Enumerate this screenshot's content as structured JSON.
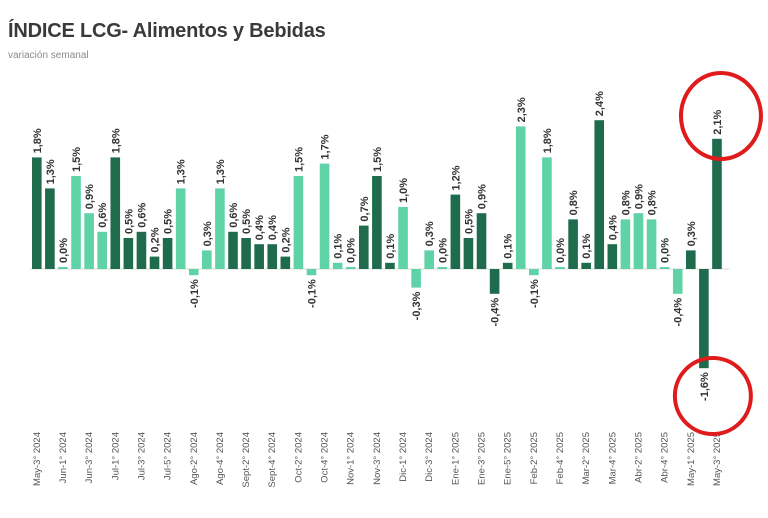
{
  "colors": {
    "dark": "#1f6b4e",
    "light": "#5fd3a7",
    "circle": "#e01b1b",
    "zero_line": "#d9d9d9"
  },
  "chart_data": {
    "type": "bar",
    "title": "ÍNDICE LCG- Alimentos y Bebidas",
    "subtitle": "variación semanal",
    "ylim": [
      -2.0,
      2.6
    ],
    "categories": [
      "May-3° 2024",
      "",
      "Jun-1° 2024",
      "",
      "Jun-3° 2024",
      "",
      "Jul-1° 2024",
      "",
      "Jul-3° 2024",
      "",
      "Jul-5° 2024",
      "",
      "Ago-2° 2024",
      "",
      "Ago-4° 2024",
      "",
      "Sept-2° 2024",
      "",
      "Sept-4° 2024",
      "",
      "Oct-2° 2024",
      "",
      "Oct-4° 2024",
      "",
      "Nov-1° 2024",
      "",
      "Nov-3° 2024",
      "",
      "Dic-1° 2024",
      "",
      "Dic-3° 2024",
      "",
      "Ene-1° 2025",
      "",
      "Ene-3° 2025",
      "",
      "Ene-5° 2025",
      "",
      "Feb-2° 2025",
      "",
      "Feb-4° 2025",
      "",
      "Mar-2° 2025",
      "",
      "Mar-4° 2025",
      "",
      "Abr-2° 2025",
      "",
      "Abr-4° 2025",
      "",
      "May-1° 2025",
      "",
      "May-3° 2025"
    ],
    "values": [
      1.8,
      1.3,
      0.0,
      1.5,
      0.9,
      0.6,
      1.8,
      0.5,
      0.6,
      0.2,
      0.5,
      1.3,
      -0.1,
      0.3,
      1.3,
      0.6,
      0.5,
      0.4,
      0.4,
      0.2,
      1.5,
      -0.1,
      1.7,
      0.1,
      0.0,
      0.7,
      1.5,
      0.1,
      1.0,
      -0.3,
      0.3,
      0.0,
      1.2,
      0.5,
      0.9,
      -0.4,
      0.1,
      2.3,
      -0.1,
      1.8,
      0.0,
      0.8,
      0.1,
      2.4,
      0.4,
      0.8,
      0.9,
      0.8,
      0.0,
      -0.4,
      0.3,
      -1.6,
      2.1
    ],
    "labels": [
      "1,8%",
      "1,3%",
      "0,0%",
      "1,5%",
      "0,9%",
      "0,6%",
      "1,8%",
      "0,5%",
      "0,6%",
      "0,2%",
      "0,5%",
      "1,3%",
      "-0,1%",
      "0,3%",
      "1,3%",
      "0,6%",
      "0,5%",
      "0,4%",
      "0,4%",
      "0,2%",
      "1,5%",
      "-0,1%",
      "1,7%",
      "0,1%",
      "0,0%",
      "0,7%",
      "1,5%",
      "0,1%",
      "1,0%",
      "-0,3%",
      "0,3%",
      "0,0%",
      "1,2%",
      "0,5%",
      "0,9%",
      "-0,4%",
      "0,1%",
      "2,3%",
      "-0,1%",
      "1,8%",
      "0,0%",
      "0,8%",
      "0,1%",
      "2,4%",
      "0,4%",
      "0,8%",
      "0,9%",
      "0,8%",
      "0,0%",
      "-0,4%",
      "0,3%",
      "-1,6%",
      "2,1%"
    ],
    "colors": [
      "dark",
      "dark",
      "light",
      "light",
      "light",
      "light",
      "dark",
      "dark",
      "dark",
      "dark",
      "dark",
      "light",
      "light",
      "light",
      "light",
      "dark",
      "dark",
      "dark",
      "dark",
      "dark",
      "light",
      "light",
      "light",
      "light",
      "light",
      "dark",
      "dark",
      "dark",
      "light",
      "light",
      "light",
      "light",
      "dark",
      "dark",
      "dark",
      "dark",
      "dark",
      "light",
      "light",
      "light",
      "light",
      "dark",
      "dark",
      "dark",
      "dark",
      "light",
      "light",
      "light",
      "light",
      "light",
      "dark",
      "dark",
      "dark"
    ],
    "highlighted": [
      "May-1° 2025",
      "May-3° 2025"
    ],
    "grid": false,
    "legend": "none"
  }
}
